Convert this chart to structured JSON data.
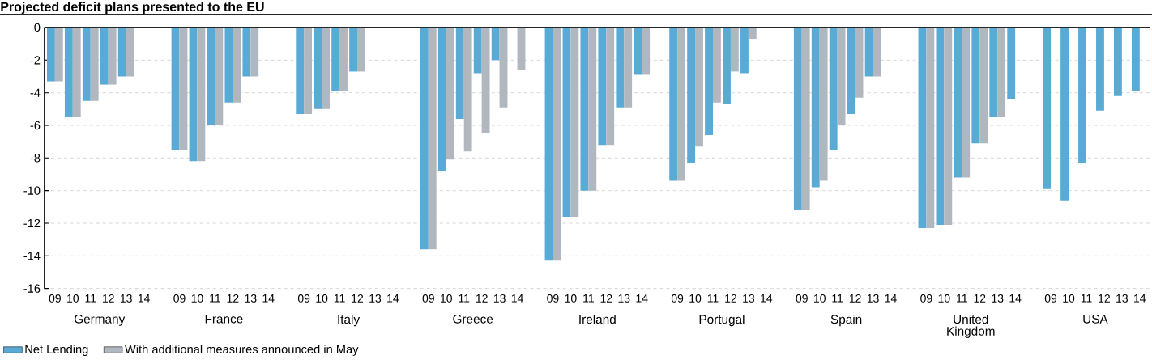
{
  "chart_data": {
    "type": "bar",
    "title": "Projected deficit plans presented to the EU",
    "categories": [
      "09",
      "10",
      "11",
      "12",
      "13",
      "14",
      "09",
      "10",
      "11",
      "12",
      "13",
      "14",
      "09",
      "10",
      "11",
      "12",
      "13",
      "14",
      "09",
      "10",
      "11",
      "12",
      "13",
      "14",
      "09",
      "10",
      "11",
      "12",
      "13",
      "14",
      "09",
      "10",
      "11",
      "12",
      "13",
      "14",
      "09",
      "10",
      "11",
      "12",
      "13",
      "14",
      "09",
      "10",
      "11",
      "12",
      "13",
      "14",
      "09",
      "10",
      "11",
      "12",
      "13",
      "14"
    ],
    "annotations": [
      "Germany",
      "France",
      "Italy",
      "Greece",
      "Ireland",
      "Portugal",
      "Spain",
      "United Kingdom",
      "USA"
    ],
    "series": [
      {
        "name": "Net Lending",
        "color": "#5aaad6",
        "values": [
          -3.3,
          -5.5,
          -4.5,
          -3.5,
          -3.0,
          null,
          -7.5,
          -8.2,
          -6.0,
          -4.6,
          -3.0,
          null,
          -5.3,
          -5.0,
          -3.9,
          -2.7,
          null,
          null,
          -13.6,
          -8.8,
          -5.6,
          -2.8,
          -2.0,
          null,
          -14.3,
          -11.6,
          -10.0,
          -7.2,
          -4.9,
          -2.9,
          -9.4,
          -8.3,
          -6.6,
          -4.7,
          -2.8,
          null,
          -11.2,
          -9.8,
          -7.5,
          -5.3,
          -3.0,
          null,
          -12.3,
          -12.1,
          -9.2,
          -7.1,
          -5.5,
          -4.4,
          -9.9,
          -10.6,
          -8.3,
          -5.1,
          -4.2,
          -3.9
        ]
      },
      {
        "name": "With additional measures announced in May",
        "color": "#b1b7bf",
        "values": [
          -3.3,
          -5.5,
          -4.5,
          -3.5,
          -3.0,
          null,
          -7.5,
          -8.2,
          -6.0,
          -4.6,
          -3.0,
          null,
          -5.3,
          -5.0,
          -3.9,
          -2.7,
          null,
          null,
          -13.6,
          -8.1,
          -7.6,
          -6.5,
          -4.9,
          -2.6,
          -14.3,
          -11.6,
          -10.0,
          -7.2,
          -4.9,
          -2.9,
          -9.4,
          -7.3,
          -4.6,
          -2.7,
          -0.7,
          null,
          -11.2,
          -9.4,
          -6.0,
          -4.3,
          -3.0,
          null,
          -12.3,
          -12.1,
          -9.2,
          -7.1,
          -5.5,
          null,
          null,
          null,
          null,
          null,
          null,
          null
        ]
      }
    ],
    "ylim": [
      -16,
      0
    ],
    "yticks": [
      0,
      -2,
      -4,
      -6,
      -8,
      -10,
      -12,
      -14,
      -16
    ],
    "grid": "y",
    "legend": "bottom left"
  }
}
